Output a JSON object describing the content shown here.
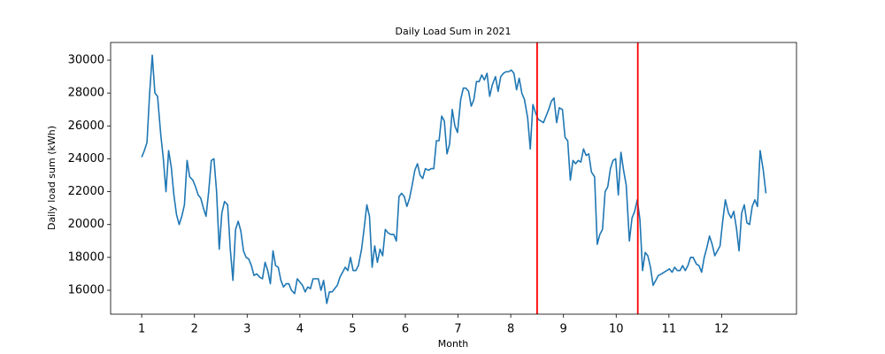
{
  "chart_data": {
    "type": "line",
    "title": "Daily Load Sum in 2021",
    "x_label": "Month",
    "y_label": "Daily load sum (kWh)",
    "x": [
      1,
      1.05,
      1.1,
      1.15,
      1.2,
      1.25,
      1.3,
      1.36,
      1.41,
      1.46,
      1.51,
      1.56,
      1.61,
      1.66,
      1.71,
      1.76,
      1.81,
      1.86,
      1.91,
      1.97,
      2.02,
      2.07,
      2.12,
      2.17,
      2.22,
      2.27,
      2.32,
      2.37,
      2.42,
      2.47,
      2.52,
      2.57,
      2.63,
      2.68,
      2.73,
      2.78,
      2.83,
      2.88,
      2.93,
      2.98,
      3.03,
      3.08,
      3.13,
      3.18,
      3.24,
      3.29,
      3.34,
      3.39,
      3.44,
      3.49,
      3.54,
      3.59,
      3.64,
      3.69,
      3.74,
      3.79,
      3.84,
      3.9,
      3.95,
      4,
      4.05,
      4.1,
      4.15,
      4.2,
      4.25,
      4.3,
      4.35,
      4.4,
      4.45,
      4.51,
      4.56,
      4.61,
      4.66,
      4.71,
      4.76,
      4.81,
      4.86,
      4.91,
      4.96,
      5.01,
      5.06,
      5.11,
      5.17,
      5.22,
      5.27,
      5.32,
      5.37,
      5.42,
      5.47,
      5.52,
      5.57,
      5.62,
      5.67,
      5.72,
      5.78,
      5.83,
      5.88,
      5.93,
      5.98,
      6.03,
      6.08,
      6.13,
      6.18,
      6.23,
      6.28,
      6.33,
      6.38,
      6.44,
      6.49,
      6.54,
      6.59,
      6.64,
      6.69,
      6.74,
      6.79,
      6.84,
      6.89,
      6.94,
      6.99,
      7.05,
      7.1,
      7.15,
      7.2,
      7.25,
      7.3,
      7.35,
      7.4,
      7.45,
      7.5,
      7.55,
      7.6,
      7.65,
      7.71,
      7.76,
      7.81,
      7.86,
      7.91,
      7.96,
      8.01,
      8.06,
      8.11,
      8.16,
      8.21,
      8.26,
      8.32,
      8.37,
      8.42,
      8.47,
      8.52,
      8.57,
      8.62,
      8.67,
      8.72,
      8.77,
      8.82,
      8.87,
      8.92,
      8.98,
      9.03,
      9.08,
      9.13,
      9.18,
      9.23,
      9.28,
      9.33,
      9.38,
      9.43,
      9.48,
      9.53,
      9.59,
      9.64,
      9.69,
      9.74,
      9.79,
      9.84,
      9.89,
      9.94,
      9.99,
      10.04,
      10.09,
      10.14,
      10.19,
      10.25,
      10.3,
      10.35,
      10.4,
      10.45,
      10.5,
      10.55,
      10.6,
      10.65,
      10.7,
      10.75,
      10.8,
      10.86,
      10.91,
      10.96,
      11.01,
      11.06,
      11.11,
      11.16,
      11.21,
      11.26,
      11.31,
      11.36,
      11.41,
      11.46,
      11.52,
      11.57,
      11.62,
      11.67,
      11.72,
      11.77,
      11.82,
      11.87,
      11.92,
      11.97,
      12.02,
      12.07,
      12.13,
      12.18,
      12.23,
      12.28,
      12.33,
      12.38,
      12.43,
      12.48,
      12.53,
      12.58,
      12.63,
      12.68,
      12.73,
      12.79,
      12.84
    ],
    "values": [
      24100,
      24500,
      25000,
      28000,
      30300,
      28000,
      27800,
      25500,
      24000,
      22000,
      24500,
      23500,
      21800,
      20600,
      20000,
      20500,
      21200,
      23900,
      22900,
      22700,
      22300,
      21800,
      21600,
      21000,
      20500,
      22000,
      23900,
      24000,
      22000,
      18500,
      20700,
      21400,
      21200,
      18500,
      16600,
      19700,
      20200,
      19600,
      18400,
      18000,
      17900,
      17500,
      16900,
      17000,
      16800,
      16700,
      17700,
      17200,
      16400,
      18400,
      17500,
      17400,
      16600,
      16200,
      16400,
      16400,
      16000,
      15800,
      16700,
      16500,
      16300,
      15900,
      16200,
      16100,
      16700,
      16700,
      16700,
      16000,
      16600,
      15200,
      15900,
      15900,
      16100,
      16300,
      16800,
      17100,
      17400,
      17200,
      18000,
      17200,
      17200,
      17500,
      18500,
      19800,
      21200,
      20500,
      17400,
      18700,
      17700,
      18500,
      18100,
      19700,
      19500,
      19400,
      19400,
      19000,
      21700,
      21900,
      21700,
      21100,
      21600,
      22400,
      23300,
      23700,
      23000,
      22800,
      23400,
      23300,
      23400,
      23400,
      25100,
      25100,
      26600,
      26300,
      24300,
      24900,
      27000,
      26000,
      25600,
      27600,
      28300,
      28300,
      28100,
      27200,
      27600,
      28700,
      28700,
      29100,
      28800,
      29200,
      27800,
      28500,
      29000,
      28100,
      29000,
      29200,
      29300,
      29300,
      29400,
      29200,
      28200,
      28900,
      28000,
      27600,
      26500,
      24600,
      27300,
      26800,
      26400,
      26300,
      26200,
      26600,
      27000,
      27500,
      27700,
      26200,
      27100,
      27000,
      25300,
      25100,
      22700,
      23900,
      23700,
      23900,
      23800,
      24600,
      24200,
      24300,
      23200,
      22900,
      18800,
      19400,
      19700,
      22000,
      22300,
      23400,
      23900,
      24000,
      21800,
      24400,
      23300,
      22400,
      19000,
      20400,
      20800,
      21500,
      20300,
      17200,
      18300,
      18100,
      17400,
      16300,
      16600,
      16900,
      17000,
      17100,
      17200,
      17300,
      17100,
      17400,
      17200,
      17200,
      17500,
      17200,
      17500,
      18000,
      18000,
      17600,
      17500,
      17100,
      18000,
      18600,
      19300,
      18800,
      18100,
      18400,
      18700,
      20200,
      21500,
      20700,
      20400,
      20800,
      19800,
      18400,
      20700,
      21200,
      20100,
      20000,
      21100,
      21500,
      21100,
      24500,
      23300,
      21900
    ],
    "color": "#1f77b4",
    "vlines": [
      8.5,
      10.41
    ],
    "vline_color": "#ff0000",
    "xlim": [
      0.41,
      13.42
    ],
    "ylim": [
      14546,
      31077
    ],
    "xticks": [
      1,
      2,
      3,
      4,
      5,
      6,
      7,
      8,
      9,
      10,
      11,
      12
    ],
    "yticks": [
      16000,
      18000,
      20000,
      22000,
      24000,
      26000,
      28000,
      30000
    ],
    "grid": false
  }
}
